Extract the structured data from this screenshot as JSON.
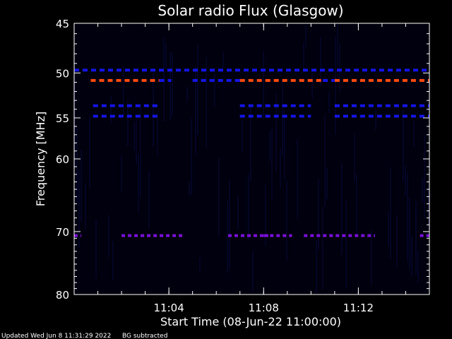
{
  "chart_data": {
    "type": "heatmap",
    "title": "Solar radio Flux (Glasgow)",
    "xlabel": "Start Time (08-Jun-22 11:00:00)",
    "ylabel": "Frequency [MHz]",
    "x_unit": "minutes after 11:00:00",
    "xlim": [
      0,
      15
    ],
    "ylim": [
      45,
      80
    ],
    "y_scale": "log",
    "x_ticks": [
      {
        "minute": 4,
        "label": "11:04"
      },
      {
        "minute": 8,
        "label": "11:08"
      },
      {
        "minute": 12,
        "label": "11:12"
      }
    ],
    "y_ticks": [
      {
        "value": 45,
        "label": "45"
      },
      {
        "value": 50,
        "label": "50"
      },
      {
        "value": 55,
        "label": "55"
      },
      {
        "value": 60,
        "label": "60"
      },
      {
        "value": 70,
        "label": "70"
      },
      {
        "value": 80,
        "label": "80"
      }
    ],
    "background_subtracted": true,
    "bands": [
      {
        "freq_mhz": 49.7,
        "color": "#1414e6",
        "segments": [
          [
            0.0,
            15.0
          ]
        ],
        "pattern": "dashed"
      },
      {
        "freq_mhz": 50.8,
        "color": "#ff4a10",
        "segments": [
          [
            0.7,
            3.6
          ],
          [
            7.0,
            10.5
          ],
          [
            11.0,
            15.0
          ]
        ],
        "pattern": "dashed"
      },
      {
        "freq_mhz": 50.8,
        "color": "#1414e6",
        "segments": [
          [
            3.6,
            4.1
          ],
          [
            5.0,
            7.0
          ],
          [
            10.5,
            11.0
          ]
        ],
        "pattern": "dashed"
      },
      {
        "freq_mhz": 53.6,
        "color": "#1414e6",
        "segments": [
          [
            0.8,
            3.6
          ],
          [
            7.0,
            10.0
          ],
          [
            11.0,
            15.0
          ]
        ],
        "pattern": "dashed"
      },
      {
        "freq_mhz": 54.8,
        "color": "#1414e6",
        "segments": [
          [
            0.8,
            3.6
          ],
          [
            7.0,
            10.0
          ],
          [
            11.0,
            15.0
          ]
        ],
        "pattern": "dashed"
      },
      {
        "freq_mhz": 70.6,
        "color": "#7a10d8",
        "segments": [
          [
            0.0,
            0.3
          ],
          [
            2.0,
            4.6
          ],
          [
            6.5,
            8.2
          ],
          [
            8.0,
            9.2
          ],
          [
            9.7,
            12.7
          ],
          [
            14.6,
            15.0
          ]
        ],
        "pattern": "dotted"
      }
    ]
  },
  "footer": {
    "updated": "Updated Wed Jun  8 11:31:29 2022",
    "note": "BG subtracted"
  }
}
